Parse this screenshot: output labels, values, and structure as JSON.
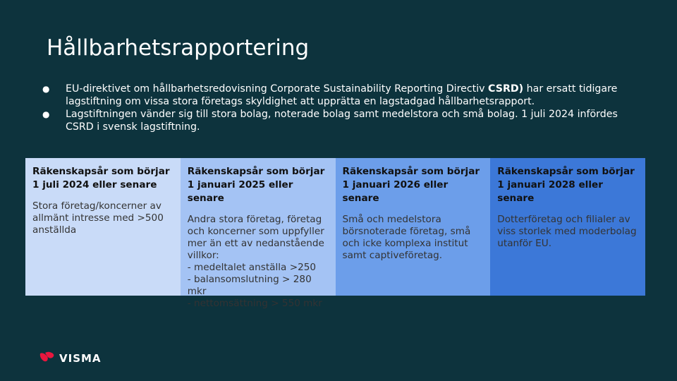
{
  "slide": {
    "title": "Hållbarhetsrapportering"
  },
  "bullets": [
    {
      "dot": "●",
      "text_before": "EU-direktivet om hållbarhetsredovisning Corporate Sustainability Reporting Directiv ",
      "bold": "CSRD)",
      "text_after": "  har ersatt tidigare lagstiftning om vissa stora företags skyldighet att upprätta en lagstadgad hållbarhetsrapport."
    },
    {
      "dot": "●",
      "text_before": "Lagstiftningen vänder sig till stora bolag, noterade bolag samt medelstora och små bolag. 1 juli 2024 infördes CSRD  i svensk lagstiftning.",
      "bold": "",
      "text_after": ""
    }
  ],
  "columns": [
    {
      "heading": "Räkenskapsår som börjar 1 juli 2024 eller senare",
      "body": "Stora företag/koncerner av allmänt intresse med >500 anställda",
      "color": "#c9dbf8"
    },
    {
      "heading": "Räkenskapsår som börjar 1 januari 2025 eller senare",
      "body": "Andra stora företag, företag och koncerner som uppfyller mer än ett av nedanstående villkor:\n- medeltalet anställa >250\n- balansomslutning > 280 mkr\n- nettomsättning > 550 mkr",
      "color": "#a4c3f4"
    },
    {
      "heading": "Räkenskapsår som börjar 1 januari 2026 eller senare",
      "body": "Små och medelstora börsnoterade företag, små och icke komplexa institut samt captiveföretag.",
      "color": "#6c9eea"
    },
    {
      "heading": "Räkenskapsår som börjar 1 januari 2028 eller senare",
      "body": "Dotterföretag och filialer av viss storlek med moderbolag utanför EU.",
      "color": "#3c78d8"
    }
  ],
  "logo": {
    "text": "VISMA",
    "icon": "visma-logo-icon",
    "color": "#e8173e"
  },
  "colors": {
    "background": "#0d333d"
  }
}
